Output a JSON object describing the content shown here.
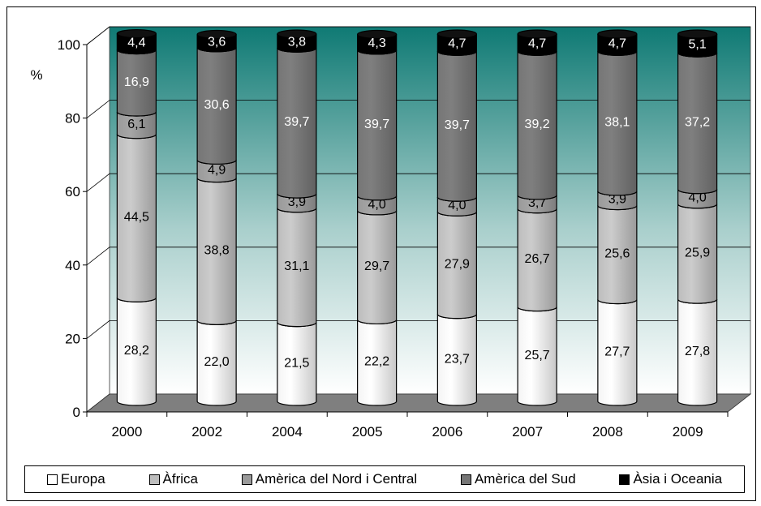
{
  "chart_data": {
    "type": "bar",
    "stacked": true,
    "ylabel": "%",
    "ylim": [
      0,
      100
    ],
    "yticks": [
      0,
      20,
      40,
      60,
      80,
      100
    ],
    "grid": true,
    "legend_position": "bottom",
    "categories": [
      "2000",
      "2002",
      "2004",
      "2005",
      "2006",
      "2007",
      "2008",
      "2009"
    ],
    "series": [
      {
        "name": "Europa",
        "color": "#ffffff",
        "values": [
          28.2,
          22.0,
          21.5,
          22.2,
          23.7,
          25.7,
          27.7,
          27.8
        ],
        "labels": [
          "28,2",
          "22,0",
          "21,5",
          "22,2",
          "23,7",
          "25,7",
          "27,7",
          "27,8"
        ]
      },
      {
        "name": "Àfrica",
        "color": "#bdbdbd",
        "values": [
          44.5,
          38.8,
          31.1,
          29.7,
          27.9,
          26.7,
          25.6,
          25.9
        ],
        "labels": [
          "44,5",
          "38,8",
          "31,1",
          "29,7",
          "27,9",
          "26,7",
          "25,6",
          "25,9"
        ]
      },
      {
        "name": "Amèrica del Nord i Central",
        "color": "#9a9a9a",
        "values": [
          6.1,
          4.9,
          3.9,
          4.0,
          4.0,
          3.7,
          3.9,
          4.0
        ],
        "labels": [
          "6,1",
          "4,9",
          "3,9",
          "4,0",
          "4,0",
          "3,7",
          "3,9",
          "4,0"
        ]
      },
      {
        "name": "Amèrica del Sud",
        "color": "#767676",
        "values": [
          16.9,
          30.6,
          39.7,
          39.7,
          39.7,
          39.2,
          38.1,
          37.2
        ],
        "labels": [
          "16,9",
          "30,6",
          "39,7",
          "39,7",
          "39,7",
          "39,2",
          "38,1",
          "37,2"
        ]
      },
      {
        "name": "Àsia i Oceania",
        "color": "#000000",
        "values": [
          4.4,
          3.6,
          3.8,
          4.3,
          4.7,
          4.7,
          4.7,
          5.1
        ],
        "labels": [
          "4,4",
          "3,6",
          "3,8",
          "4,3",
          "4,7",
          "4,7",
          "4,7",
          "5,1"
        ]
      }
    ]
  },
  "style": {
    "wall_top_color": "#0f7a74",
    "floor_color": "#7f7f7f"
  }
}
